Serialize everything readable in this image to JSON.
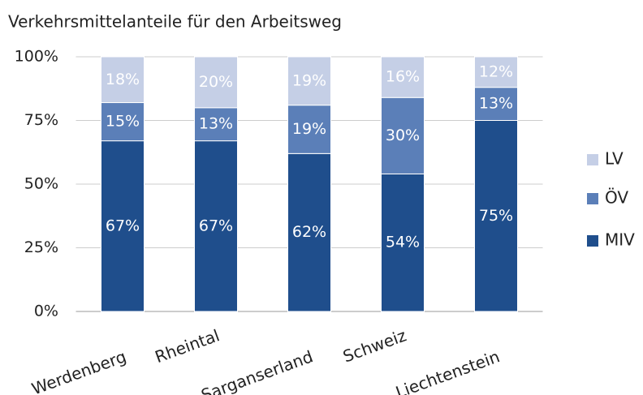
{
  "chart_data": {
    "type": "stacked_bar",
    "title": "Verkehrsmittelanteile für den Arbeitsweg",
    "categories": [
      "Werdenberg",
      "Rheintal",
      "Sarganserland",
      "Schweiz",
      "Liechtenstein"
    ],
    "series": [
      {
        "name": "MIV",
        "color": "#1f4e8c",
        "values": [
          67,
          67,
          62,
          54,
          75
        ],
        "value_labels": [
          "67%",
          "67%",
          "62%",
          "54%",
          "75%"
        ]
      },
      {
        "name": "ÖV",
        "color": "#5b7fb8",
        "values": [
          15,
          13,
          19,
          30,
          13
        ],
        "value_labels": [
          "15%",
          "13%",
          "19%",
          "30%",
          "13%"
        ]
      },
      {
        "name": "LV",
        "color": "#c5cfe6",
        "values": [
          18,
          20,
          19,
          16,
          12
        ],
        "value_labels": [
          "18%",
          "20%",
          "19%",
          "16%",
          "12%"
        ]
      }
    ],
    "ylim": [
      0,
      100
    ],
    "yticks": [
      {
        "value": 0,
        "label": "0%"
      },
      {
        "value": 25,
        "label": "25%"
      },
      {
        "value": 50,
        "label": "50%"
      },
      {
        "value": 75,
        "label": "75%"
      },
      {
        "value": 100,
        "label": "100%"
      }
    ],
    "grid": true,
    "legend": "right"
  }
}
